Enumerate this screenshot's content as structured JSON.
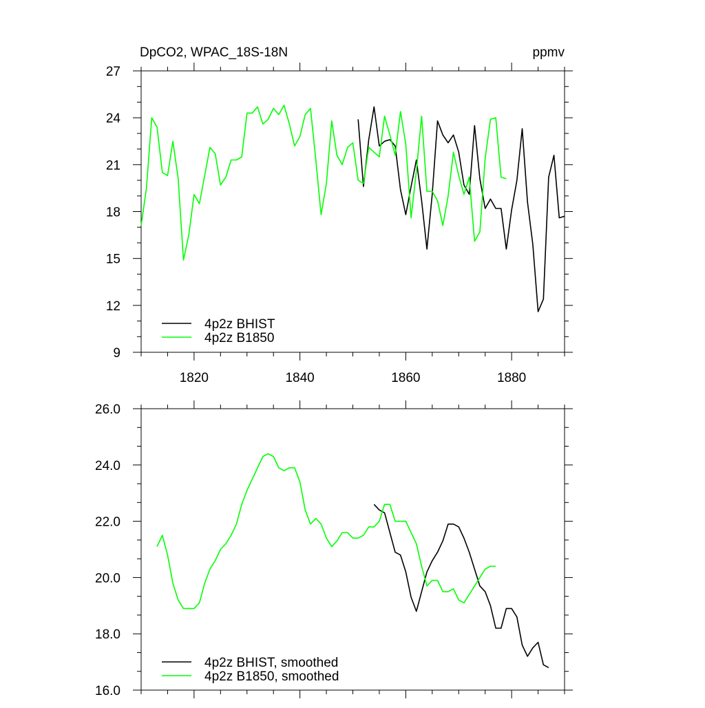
{
  "chart_data": [
    {
      "type": "line",
      "title": "DpCO2, WPAC_18S-18N",
      "units": "ppmv",
      "xlim": [
        1810,
        1890
      ],
      "ylim": [
        9,
        27
      ],
      "x_ticks": [
        1820,
        1840,
        1860,
        1880
      ],
      "y_ticks": [
        9,
        12,
        15,
        18,
        21,
        24,
        27
      ],
      "y_tick_labels": [
        "9",
        "12",
        "15",
        "18",
        "21",
        "24",
        "27"
      ],
      "grid": false,
      "legend_position": "bottom-left",
      "series": [
        {
          "name": "4p2z BHIST",
          "color": "#000000",
          "x": [
            1851,
            1852,
            1853,
            1854,
            1855,
            1856,
            1857,
            1858,
            1859,
            1860,
            1861,
            1862,
            1863,
            1864,
            1865,
            1866,
            1867,
            1868,
            1869,
            1870,
            1871,
            1872,
            1873,
            1874,
            1875,
            1876,
            1877,
            1878,
            1879,
            1880,
            1881,
            1882,
            1883,
            1884,
            1885,
            1886,
            1887,
            1888,
            1889,
            1890
          ],
          "values": [
            23.9,
            19.6,
            22.6,
            24.7,
            22.2,
            22.5,
            22.6,
            22.2,
            19.4,
            17.8,
            19.6,
            21.3,
            18.7,
            15.6,
            19.1,
            23.8,
            22.9,
            22.4,
            22.9,
            21.8,
            19.7,
            19.1,
            23.5,
            20.1,
            18.2,
            18.8,
            18.2,
            18.2,
            15.6,
            18.1,
            20.0,
            23.3,
            18.6,
            15.9,
            11.6,
            12.4,
            20.2,
            21.6,
            17.6,
            17.7
          ]
        },
        {
          "name": "4p2z B1850",
          "color": "#00ff00",
          "x": [
            1810,
            1811,
            1812,
            1813,
            1814,
            1815,
            1816,
            1817,
            1818,
            1819,
            1820,
            1821,
            1822,
            1823,
            1824,
            1825,
            1826,
            1827,
            1828,
            1829,
            1830,
            1831,
            1832,
            1833,
            1834,
            1835,
            1836,
            1837,
            1838,
            1839,
            1840,
            1841,
            1842,
            1843,
            1844,
            1845,
            1846,
            1847,
            1848,
            1849,
            1850,
            1851,
            1852,
            1853,
            1854,
            1855,
            1856,
            1857,
            1858,
            1859,
            1860,
            1861,
            1862,
            1863,
            1864,
            1865,
            1866,
            1867,
            1868,
            1869,
            1870,
            1871,
            1872,
            1873,
            1874,
            1875,
            1876,
            1877,
            1878,
            1879,
            1880
          ],
          "values": [
            17.1,
            19.5,
            24.0,
            23.4,
            20.5,
            20.3,
            22.5,
            20.1,
            14.9,
            16.5,
            19.1,
            18.5,
            20.3,
            22.1,
            21.7,
            19.7,
            20.2,
            21.3,
            21.3,
            21.5,
            24.3,
            24.3,
            24.7,
            23.6,
            23.9,
            24.6,
            24.2,
            24.8,
            23.6,
            22.2,
            22.8,
            24.2,
            24.6,
            21.3,
            17.8,
            19.8,
            23.8,
            21.6,
            21.0,
            22.1,
            22.4,
            20.0,
            19.8,
            22.1,
            21.8,
            21.5,
            24.1,
            22.9,
            21.6,
            24.4,
            22.3,
            17.6,
            20.6,
            24.1,
            19.3,
            19.3,
            18.7,
            17.1,
            19.0,
            21.8,
            20.3,
            19.1,
            20.2,
            16.1,
            16.7,
            21.4,
            23.9,
            24.0,
            20.2,
            20.1,
            null
          ]
        }
      ]
    },
    {
      "type": "line",
      "xlim": [
        1810,
        1890
      ],
      "ylim": [
        16.0,
        26.0
      ],
      "x_ticks": [
        1820,
        1840,
        1860,
        1880
      ],
      "y_ticks": [
        16,
        18,
        20,
        22,
        24,
        26
      ],
      "y_tick_labels": [
        "16.0",
        "18.0",
        "20.0",
        "22.0",
        "24.0",
        "26.0"
      ],
      "grid": false,
      "legend_position": "bottom-left",
      "series": [
        {
          "name": "4p2z BHIST, smoothed",
          "color": "#000000",
          "x": [
            1854,
            1855,
            1856,
            1857,
            1858,
            1859,
            1860,
            1861,
            1862,
            1863,
            1864,
            1865,
            1866,
            1867,
            1868,
            1869,
            1870,
            1871,
            1872,
            1873,
            1874,
            1875,
            1876,
            1877,
            1878,
            1879,
            1880,
            1881,
            1882,
            1883,
            1884,
            1885,
            1886,
            1887
          ],
          "values": [
            22.6,
            22.4,
            22.3,
            21.6,
            20.9,
            20.8,
            20.2,
            19.3,
            18.8,
            19.5,
            20.2,
            20.6,
            20.9,
            21.3,
            21.9,
            21.9,
            21.8,
            21.4,
            20.9,
            20.3,
            19.7,
            19.5,
            19.0,
            18.2,
            18.2,
            18.9,
            18.9,
            18.6,
            17.6,
            17.2,
            17.5,
            17.7,
            16.9,
            16.8
          ]
        },
        {
          "name": "4p2z B1850, smoothed",
          "color": "#00ff00",
          "x": [
            1813,
            1814,
            1815,
            1816,
            1817,
            1818,
            1819,
            1820,
            1821,
            1822,
            1823,
            1824,
            1825,
            1826,
            1827,
            1828,
            1829,
            1830,
            1831,
            1832,
            1833,
            1834,
            1835,
            1836,
            1837,
            1838,
            1839,
            1840,
            1841,
            1842,
            1843,
            1844,
            1845,
            1846,
            1847,
            1848,
            1849,
            1850,
            1851,
            1852,
            1853,
            1854,
            1855,
            1856,
            1857,
            1858,
            1859,
            1860,
            1861,
            1862,
            1863,
            1864,
            1865,
            1866,
            1867,
            1868,
            1869,
            1870,
            1871,
            1872,
            1873,
            1874,
            1875,
            1876,
            1877
          ],
          "values": [
            21.1,
            21.5,
            20.8,
            19.8,
            19.2,
            18.9,
            18.9,
            18.9,
            19.1,
            19.8,
            20.3,
            20.6,
            21.0,
            21.2,
            21.5,
            21.9,
            22.6,
            23.1,
            23.5,
            23.9,
            24.3,
            24.4,
            24.3,
            23.9,
            23.8,
            23.9,
            23.9,
            23.4,
            22.4,
            21.9,
            22.1,
            21.9,
            21.4,
            21.1,
            21.3,
            21.6,
            21.6,
            21.4,
            21.4,
            21.5,
            21.8,
            21.8,
            22.0,
            22.6,
            22.6,
            22.0,
            22.0,
            22.0,
            21.6,
            21.2,
            20.4,
            19.7,
            19.9,
            19.9,
            19.5,
            19.5,
            19.6,
            19.2,
            19.1,
            19.4,
            19.7,
            20.0,
            20.3,
            20.4,
            20.4
          ]
        }
      ]
    }
  ]
}
